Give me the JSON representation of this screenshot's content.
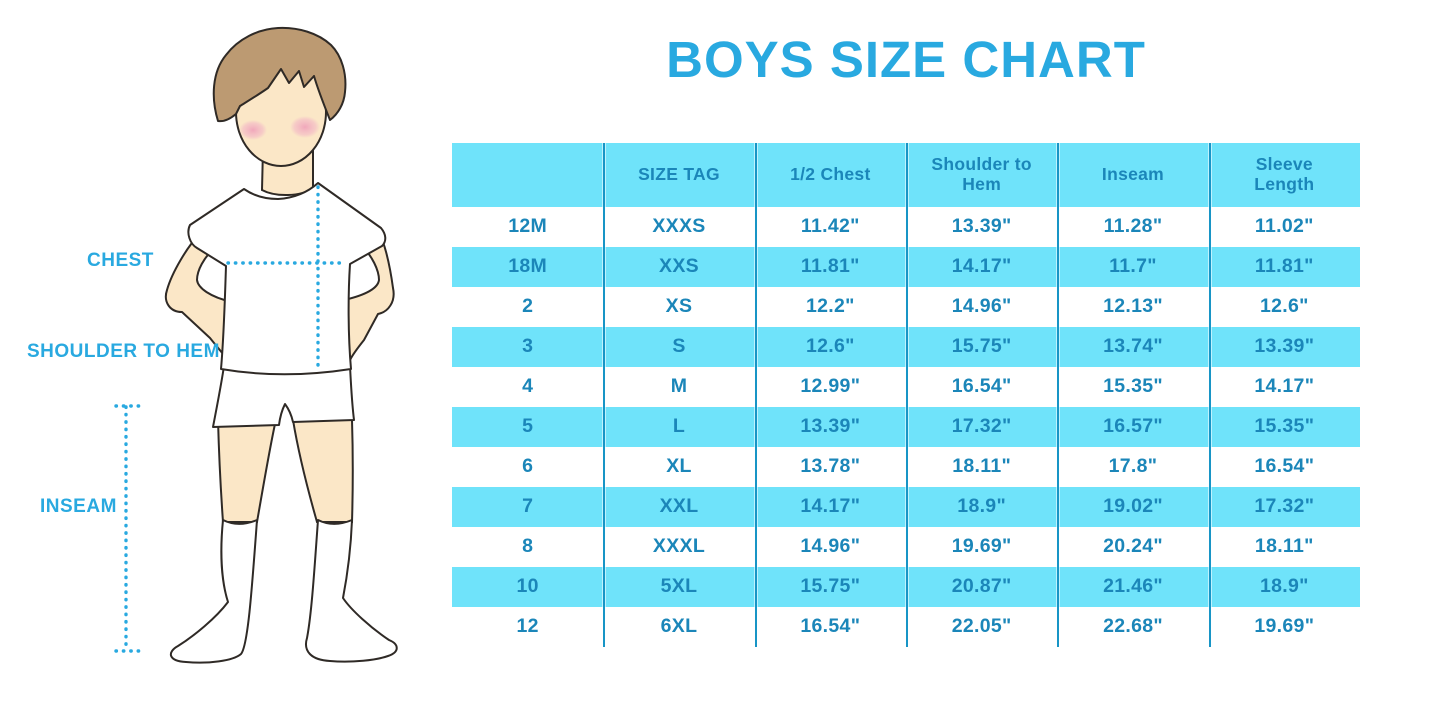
{
  "title": "BOYS SIZE CHART",
  "colors": {
    "accent": "#29a9e0",
    "row_band": "#6fe3fa",
    "column_divider": "#1895c6",
    "table_text": "#1b86b9",
    "skin": "#fbe7c7",
    "hair": "#bc9a72",
    "blush": "#f0a4ba",
    "outline": "#2f2a26"
  },
  "figure": {
    "description": "boy-illustration-with-measurement-lines",
    "labels": {
      "chest": "CHEST",
      "shoulder_to_hem": "SHOULDER TO HEM",
      "inseam": "INSEAM"
    }
  },
  "chart_data": {
    "type": "table",
    "title": "BOYS SIZE CHART",
    "units": "inches",
    "columns": [
      "",
      "SIZE TAG",
      "1/2 Chest",
      "Shoulder to Hem",
      "Inseam",
      "Sleeve Length"
    ],
    "rows": [
      [
        "12M",
        "XXXS",
        "11.42\"",
        "13.39\"",
        "11.28\"",
        "11.02\""
      ],
      [
        "18M",
        "XXS",
        "11.81\"",
        "14.17\"",
        "11.7\"",
        "11.81\""
      ],
      [
        "2",
        "XS",
        "12.2\"",
        "14.96\"",
        "12.13\"",
        "12.6\""
      ],
      [
        "3",
        "S",
        "12.6\"",
        "15.75\"",
        "13.74\"",
        "13.39\""
      ],
      [
        "4",
        "M",
        "12.99\"",
        "16.54\"",
        "15.35\"",
        "14.17\""
      ],
      [
        "5",
        "L",
        "13.39\"",
        "17.32\"",
        "16.57\"",
        "15.35\""
      ],
      [
        "6",
        "XL",
        "13.78\"",
        "18.11\"",
        "17.8\"",
        "16.54\""
      ],
      [
        "7",
        "XXL",
        "14.17\"",
        "18.9\"",
        "19.02\"",
        "17.32\""
      ],
      [
        "8",
        "XXXL",
        "14.96\"",
        "19.69\"",
        "20.24\"",
        "18.11\""
      ],
      [
        "10",
        "5XL",
        "15.75\"",
        "20.87\"",
        "21.46\"",
        "18.9\""
      ],
      [
        "12",
        "6XL",
        "16.54\"",
        "22.05\"",
        "22.68\"",
        "19.69\""
      ]
    ],
    "annotations": [
      "CHEST",
      "SHOULDER TO HEM",
      "INSEAM"
    ],
    "layout": {
      "header_band": true,
      "alternating_rows": "white/cyan",
      "legend_position": "none",
      "grid": "vertical-dividers-only"
    }
  }
}
